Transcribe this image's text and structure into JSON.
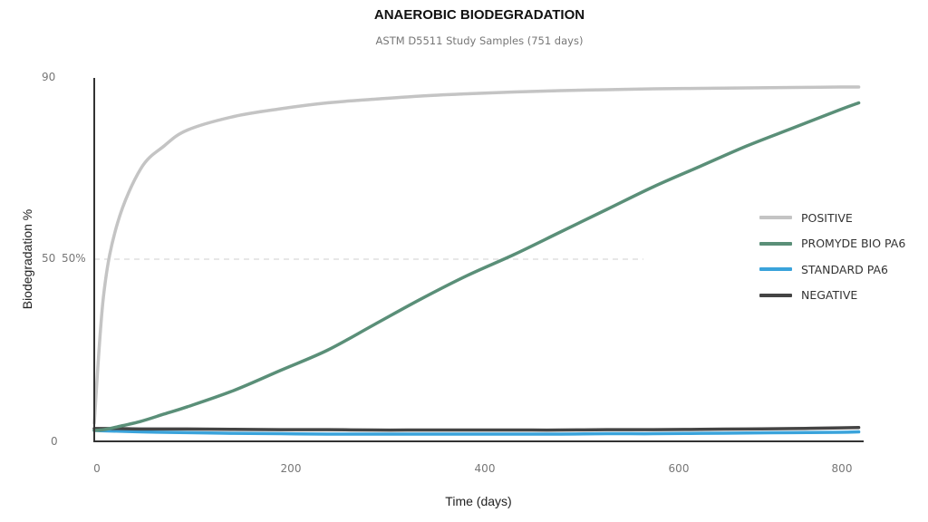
{
  "chart_data": {
    "type": "line",
    "title": "ANAEROBIC BIODEGRADATION",
    "subtitle": "ASTM D5511 Study Samples (751 days)",
    "xlabel": "Time (days)",
    "ylabel": "Biodegradation %",
    "xlim": [
      0,
      820
    ],
    "ylim": [
      0,
      90
    ],
    "x_ticks": [
      "0",
      "200",
      "400",
      "600",
      "800"
    ],
    "y_ticks": [
      "0",
      "50",
      "90"
    ],
    "reference_line": {
      "y": 50,
      "label": "50%",
      "style": "dashed",
      "x_range": [
        0,
        560
      ]
    },
    "legend_position": "right",
    "grid": false,
    "x": [
      0,
      10,
      25,
      50,
      75,
      100,
      150,
      200,
      250,
      300,
      350,
      400,
      450,
      500,
      550,
      600,
      650,
      700,
      750,
      800,
      820
    ],
    "series": [
      {
        "name": "POSITIVE",
        "color": "#c4c4c4",
        "values": [
          5,
          40,
          58,
          70,
          75,
          78.5,
          81.5,
          83.2,
          84.5,
          85.3,
          86,
          86.5,
          86.9,
          87.2,
          87.4,
          87.6,
          87.7,
          87.8,
          87.9,
          88,
          88
        ]
      },
      {
        "name": "PROMYDE BIO PA6",
        "color": "#5a8f78",
        "values": [
          3,
          3.2,
          4,
          5.5,
          7.5,
          9.5,
          14,
          19.5,
          25,
          32,
          39,
          45.5,
          51,
          56,
          61,
          66,
          70.5,
          75,
          79,
          83,
          84.5
        ]
      },
      {
        "name": "STANDARD PA6",
        "color": "#3aa3db",
        "values": [
          3,
          2.9,
          2.8,
          2.6,
          2.5,
          2.4,
          2.2,
          2.1,
          2,
          2,
          2,
          2,
          2,
          2,
          2.1,
          2.1,
          2.2,
          2.3,
          2.4,
          2.5,
          2.6
        ]
      },
      {
        "name": "NEGATIVE",
        "color": "#444444",
        "values": [
          3.5,
          3.5,
          3.5,
          3.4,
          3.4,
          3.4,
          3.3,
          3.2,
          3.2,
          3.1,
          3.1,
          3.1,
          3.1,
          3.1,
          3.2,
          3.2,
          3.3,
          3.4,
          3.5,
          3.7,
          3.8
        ]
      }
    ]
  },
  "labels": {
    "title": "ANAEROBIC BIODEGRADATION",
    "subtitle": "ASTM D5511 Study Samples (751 days)",
    "ytick_90": "90",
    "ytick_50": "50",
    "ref_50": "50%",
    "ytick_0": "0",
    "xticks": [
      "0",
      "200",
      "400",
      "600",
      "800"
    ],
    "xlabel": "Time (days)",
    "ylabel": "Biodegradation %"
  },
  "legend": [
    {
      "label": "POSITIVE",
      "color": "#c4c4c4"
    },
    {
      "label": "PROMYDE BIO PA6",
      "color": "#5a8f78"
    },
    {
      "label": "STANDARD PA6",
      "color": "#3aa3db"
    },
    {
      "label": "NEGATIVE",
      "color": "#444444"
    }
  ]
}
